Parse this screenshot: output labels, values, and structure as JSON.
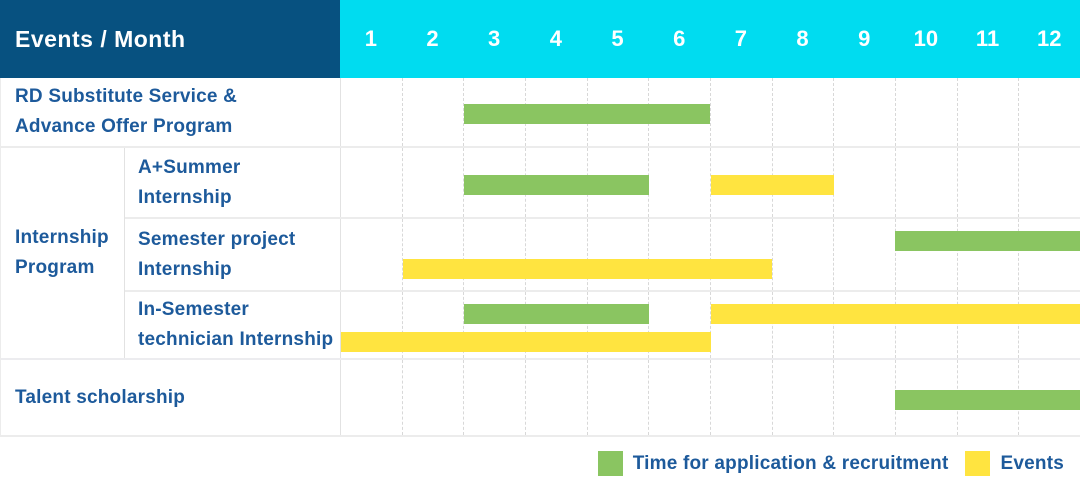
{
  "table": {
    "corner_title": "Events / Month",
    "months": [
      "1",
      "2",
      "3",
      "4",
      "5",
      "6",
      "7",
      "8",
      "9",
      "10",
      "11",
      "12"
    ],
    "group_label": "Internship\nProgram"
  },
  "colors": {
    "header_blue": "#075180",
    "header_cyan": "#00dcf0",
    "label_text_blue": "#1d5a9b",
    "application_green": "#8ac561",
    "events_yellow": "#ffe440",
    "grid_dashed": "#d8d8d8",
    "row_separator": "#ececec"
  },
  "chart_data": {
    "type": "bar",
    "subtype": "gantt",
    "title": "Events / Month",
    "x_axis": {
      "title": "Month",
      "ticks": [
        "1",
        "2",
        "3",
        "4",
        "5",
        "6",
        "7",
        "8",
        "9",
        "10",
        "11",
        "12"
      ],
      "range": [
        1,
        12
      ]
    },
    "grid": "vertical-dashed-per-month",
    "legend_position": "bottom-right",
    "rows": [
      {
        "group": "",
        "label": "RD Substitute Service &\nAdvance Offer Program",
        "bars": [
          {
            "type": "application",
            "start": 3,
            "end": 6,
            "line": 0
          }
        ]
      },
      {
        "group": "Internship Program",
        "label": "A+Summer\nInternship",
        "bars": [
          {
            "type": "application",
            "start": 3,
            "end": 5,
            "line": 0
          },
          {
            "type": "events",
            "start": 7,
            "end": 8,
            "line": 0
          }
        ]
      },
      {
        "group": "Internship Program",
        "label": "Semester project\nInternship",
        "bars": [
          {
            "type": "application",
            "start": 10,
            "end": 12,
            "line": 0
          },
          {
            "type": "events",
            "start": 2,
            "end": 7,
            "line": 1
          }
        ]
      },
      {
        "group": "Internship Program",
        "label": "In-Semester\ntechnician Internship",
        "bars": [
          {
            "type": "application",
            "start": 3,
            "end": 5,
            "line": 0
          },
          {
            "type": "events",
            "start": 7,
            "end": 12,
            "line": 0
          },
          {
            "type": "events",
            "start": 1,
            "end": 6,
            "line": 1
          }
        ]
      },
      {
        "group": "",
        "label": "Talent scholarship",
        "bars": [
          {
            "type": "application",
            "start": 10,
            "end": 12,
            "line": 0
          }
        ]
      }
    ],
    "legend": [
      {
        "label": "Time for application & recruitment",
        "type": "application",
        "color": "#8ac561"
      },
      {
        "label": "Events",
        "type": "events",
        "color": "#ffe440"
      }
    ]
  }
}
